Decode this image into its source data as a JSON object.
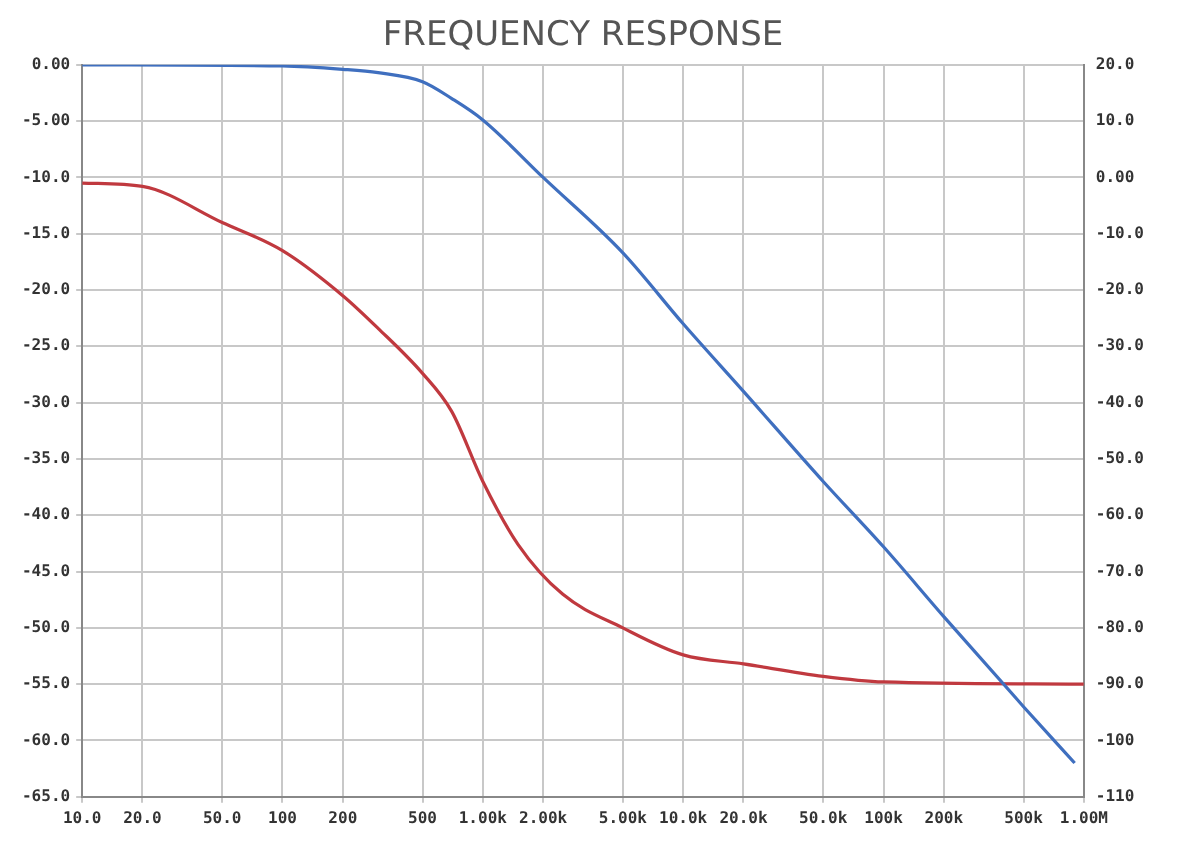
{
  "chart_data": {
    "type": "line",
    "title": "FREQUENCY RESPONSE",
    "log": "x",
    "grid": true,
    "legend": false,
    "marker": "none",
    "line_style": "solid",
    "xlim": [
      10,
      1000000
    ],
    "xticks": [
      {
        "value": 10,
        "label": "10.0"
      },
      {
        "value": 20,
        "label": "20.0"
      },
      {
        "value": 50,
        "label": "50.0"
      },
      100,
      200,
      500,
      {
        "value": 1000,
        "label": "1.00k"
      },
      {
        "value": 2000,
        "label": "2.00k"
      },
      {
        "value": 5000,
        "label": "5.00k"
      },
      {
        "value": 10000,
        "label": "10.0k"
      },
      {
        "value": 20000,
        "label": "20.0k"
      },
      {
        "value": 50000,
        "label": "50.0k"
      },
      {
        "value": 100000,
        "label": "100k"
      },
      {
        "value": 200000,
        "label": "200k"
      },
      {
        "value": 500000,
        "label": "500k"
      },
      {
        "value": 1000000,
        "label": "1.00M"
      }
    ],
    "ylim": [
      -65,
      0
    ],
    "yticks": [
      {
        "value": 0,
        "label": "0.00"
      },
      {
        "value": -5,
        "label": "-5.00"
      },
      {
        "value": -10,
        "label": "-10.0"
      },
      {
        "value": -15,
        "label": "-15.0"
      },
      {
        "value": -20,
        "label": "-20.0"
      },
      {
        "value": -25,
        "label": "-25.0"
      },
      {
        "value": -30,
        "label": "-30.0"
      },
      {
        "value": -35,
        "label": "-35.0"
      },
      {
        "value": -40,
        "label": "-40.0"
      },
      {
        "value": -45,
        "label": "-45.0"
      },
      {
        "value": -50,
        "label": "-50.0"
      },
      {
        "value": -55,
        "label": "-55.0"
      },
      {
        "value": -60,
        "label": "-60.0"
      },
      {
        "value": -65,
        "label": "-65.0"
      }
    ],
    "y2lim": [
      -110,
      20
    ],
    "y2ticks": [
      {
        "value": 20,
        "label": "20.0"
      },
      {
        "value": 10,
        "label": "10.0"
      },
      {
        "value": 0,
        "label": "0.00"
      },
      {
        "value": -10,
        "label": "-10.0"
      },
      {
        "value": -20,
        "label": "-20.0"
      },
      {
        "value": -30,
        "label": "-30.0"
      },
      {
        "value": -40,
        "label": "-40.0"
      },
      {
        "value": -50,
        "label": "-50.0"
      },
      {
        "value": -60,
        "label": "-60.0"
      },
      {
        "value": -70,
        "label": "-70.0"
      },
      {
        "value": -80,
        "label": "-80.0"
      },
      {
        "value": -90,
        "label": "-90.0"
      },
      -100,
      -110
    ],
    "series": [
      {
        "color": "#3f6fbf",
        "x": [
          10,
          100,
          200,
          300,
          500,
          700,
          1000,
          2000,
          5000,
          10000,
          20000,
          50000,
          100000,
          200000,
          500000,
          900000
        ],
        "values": [
          0,
          -0.1,
          -0.4,
          -0.7,
          -1.5,
          -3,
          -4.9,
          -10,
          -16.7,
          -23,
          -29,
          -37,
          -42.8,
          -49,
          -57,
          -62
        ]
      },
      {
        "color": "#c0393f",
        "x": [
          10,
          20,
          50,
          100,
          200,
          300,
          500,
          700,
          1000,
          1500,
          2500,
          5000,
          10000,
          20000,
          50000,
          100000,
          1000000
        ],
        "values": [
          -10.5,
          -10.8,
          -14,
          -16.5,
          -20.5,
          -23.4,
          -27.4,
          -30.8,
          -37,
          -42.6,
          -47,
          -50,
          -52.4,
          -53.2,
          -54.3,
          -54.8,
          -55
        ]
      }
    ]
  }
}
